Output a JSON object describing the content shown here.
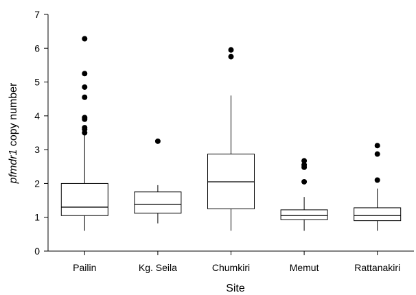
{
  "chart_data": {
    "type": "box",
    "title": "",
    "xlabel": "Site",
    "ylabel_italic": "pfmdr1",
    "ylabel_rest": " copy number",
    "ylim": [
      0,
      7
    ],
    "yticks": [
      0,
      1,
      2,
      3,
      4,
      5,
      6,
      7
    ],
    "grid": false,
    "categories": [
      "Pailin",
      "Kg. Seila",
      "Chumkiri",
      "Memut",
      "Rattanakiri"
    ],
    "boxes": [
      {
        "name": "Pailin",
        "whisker_low": 0.6,
        "q1": 1.05,
        "median": 1.3,
        "q3": 2.0,
        "whisker_high": 3.45,
        "outliers": [
          3.5,
          3.6,
          3.65,
          3.9,
          3.95,
          4.55,
          4.85,
          5.25,
          6.28
        ]
      },
      {
        "name": "Kg. Seila",
        "whisker_low": 0.82,
        "q1": 1.12,
        "median": 1.38,
        "q3": 1.75,
        "whisker_high": 1.95,
        "outliers": [
          3.25
        ]
      },
      {
        "name": "Chumkiri",
        "whisker_low": 0.6,
        "q1": 1.25,
        "median": 2.05,
        "q3": 2.87,
        "whisker_high": 4.6,
        "outliers": [
          5.75,
          5.95
        ]
      },
      {
        "name": "Memut",
        "whisker_low": 0.6,
        "q1": 0.93,
        "median": 1.05,
        "q3": 1.22,
        "whisker_high": 1.6,
        "outliers": [
          2.05,
          2.48,
          2.55,
          2.67
        ]
      },
      {
        "name": "Rattanakiri",
        "whisker_low": 0.6,
        "q1": 0.9,
        "median": 1.05,
        "q3": 1.28,
        "whisker_high": 1.85,
        "outliers": [
          2.1,
          2.87,
          3.12
        ]
      }
    ]
  }
}
